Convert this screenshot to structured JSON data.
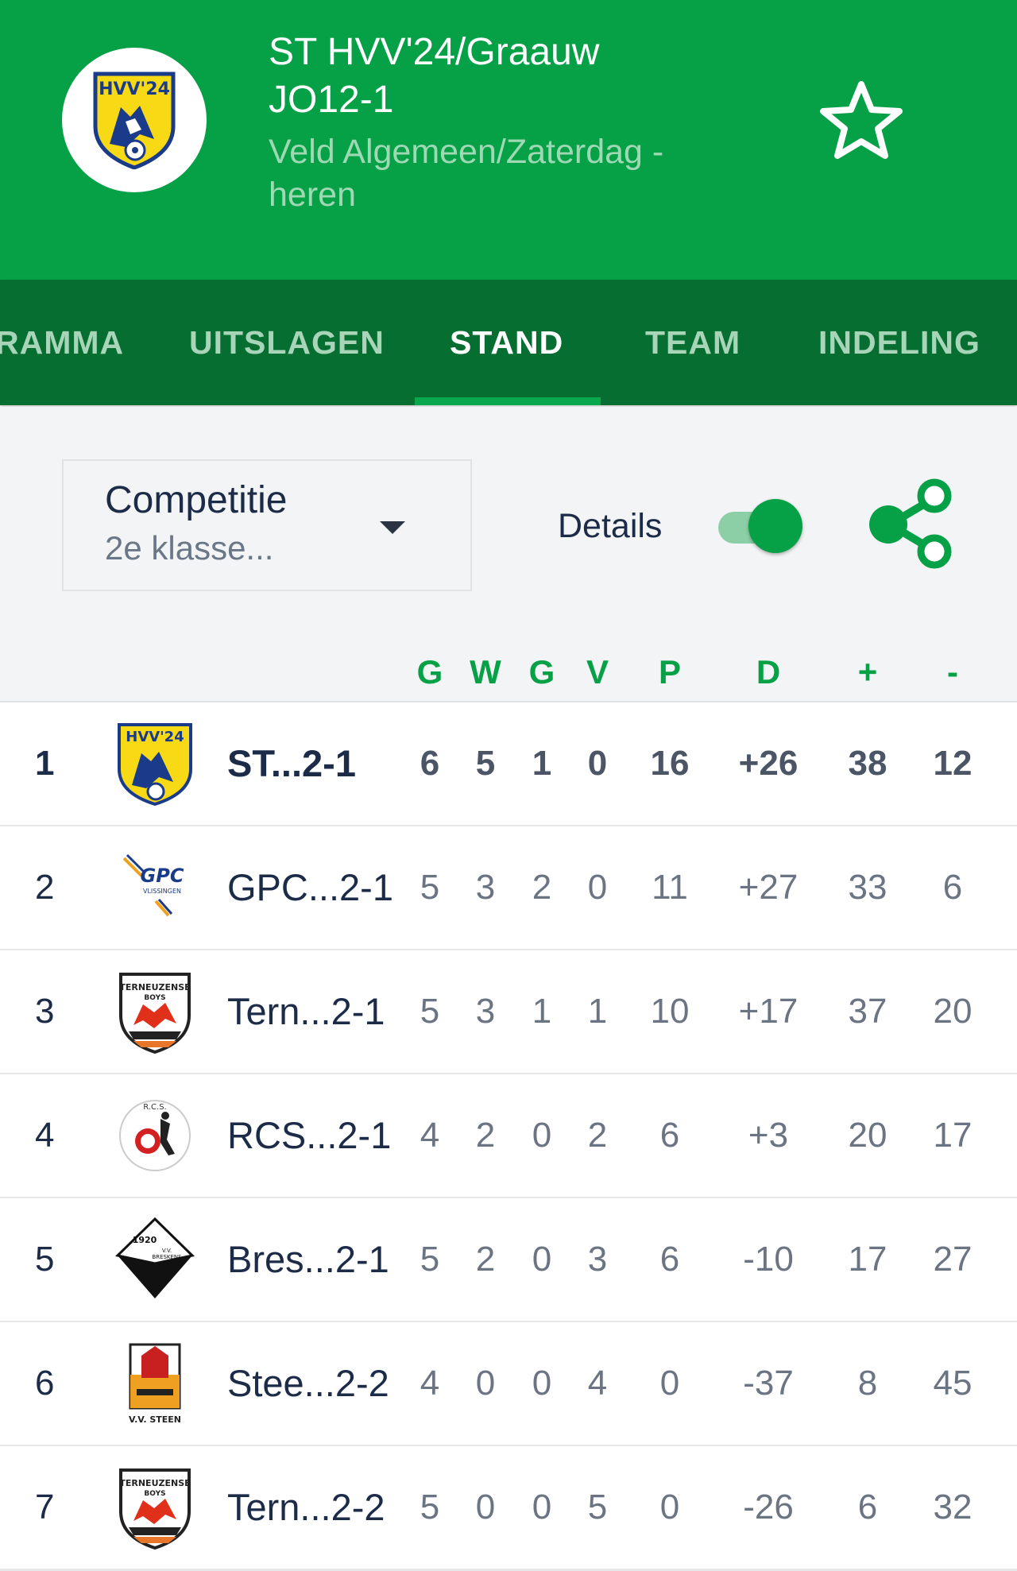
{
  "header": {
    "team_name": "ST HVV'24/Graauw JO12-1",
    "competition": "Veld Algemeen/Zaterdag - heren",
    "logo_icon": "hvv24-club-logo",
    "favorite_icon": "star-outline-icon",
    "background_color": "#06a047"
  },
  "tabs": [
    {
      "label": "RAMMA"
    },
    {
      "label": "UITSLAGEN"
    },
    {
      "label": "STAND"
    },
    {
      "label": "TEAM"
    },
    {
      "label": "INDELING"
    }
  ],
  "active_tab": "STAND",
  "filter": {
    "dropdown_label": "Competitie",
    "dropdown_value": "2e klasse...",
    "details_label": "Details",
    "details_on": true,
    "share_icon": "share-icon"
  },
  "table": {
    "columns": [
      "G",
      "W",
      "G",
      "V",
      "P",
      "D",
      "+",
      "-"
    ],
    "rows": [
      {
        "pos": "1",
        "name": "ST...2-1",
        "g": "6",
        "w": "5",
        "gl": "1",
        "v": "0",
        "p": "16",
        "d": "+26",
        "plus": "38",
        "minus": "12",
        "logo": "hvv24-logo"
      },
      {
        "pos": "2",
        "name": "GPC...2-1",
        "g": "5",
        "w": "3",
        "gl": "2",
        "v": "0",
        "p": "11",
        "d": "+27",
        "plus": "33",
        "minus": "6",
        "logo": "gpc-logo"
      },
      {
        "pos": "3",
        "name": "Tern...2-1",
        "g": "5",
        "w": "3",
        "gl": "1",
        "v": "1",
        "p": "10",
        "d": "+17",
        "plus": "37",
        "minus": "20",
        "logo": "terneuzense-boys-logo"
      },
      {
        "pos": "4",
        "name": "RCS...2-1",
        "g": "4",
        "w": "2",
        "gl": "0",
        "v": "2",
        "p": "6",
        "d": "+3",
        "plus": "20",
        "minus": "17",
        "logo": "rcs-logo"
      },
      {
        "pos": "5",
        "name": "Bres...2-1",
        "g": "5",
        "w": "2",
        "gl": "0",
        "v": "3",
        "p": "6",
        "d": "-10",
        "plus": "17",
        "minus": "27",
        "logo": "breskens-logo"
      },
      {
        "pos": "6",
        "name": "Stee...2-2",
        "g": "4",
        "w": "0",
        "gl": "0",
        "v": "4",
        "p": "0",
        "d": "-37",
        "plus": "8",
        "minus": "45",
        "logo": "steen-logo"
      },
      {
        "pos": "7",
        "name": "Tern...2-2",
        "g": "5",
        "w": "0",
        "gl": "0",
        "v": "5",
        "p": "0",
        "d": "-26",
        "plus": "6",
        "minus": "32",
        "logo": "terneuzense-boys-logo"
      }
    ]
  },
  "logo_text": {
    "hvv": "HVV'24",
    "gpc": "GPC",
    "gpc_sub": "VLISSINGEN",
    "tb": "TERNEUZENSE",
    "tb2": "BOYS",
    "rcs": "R.C.S.",
    "breskens_year": "1920",
    "breskens_vv": "V.V.",
    "breskens_name": "BRESKENS",
    "steen": "V.V. STEEN"
  }
}
